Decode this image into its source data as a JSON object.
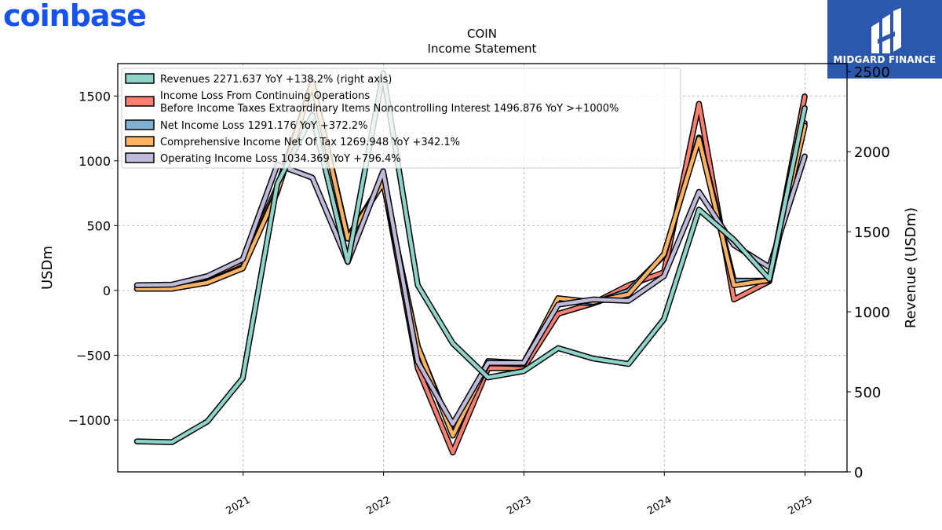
{
  "brand": {
    "name": "coinbase",
    "color": "#1652f0"
  },
  "badge": {
    "text": "MIDGARD FINANCE",
    "color": "#2b57ad"
  },
  "chart_data": {
    "type": "line",
    "title": "COIN",
    "subtitle": "Income Statement",
    "ylabel": "USDm",
    "y2label": "Revenue (USDm)",
    "ylim": [
      -1400,
      1750
    ],
    "y2lim": [
      0,
      2550
    ],
    "yticks": [
      -1000,
      -500,
      0,
      500,
      1000,
      1500
    ],
    "yticklabels": [
      "−1000",
      "−500",
      "0",
      "500",
      "1000",
      "1500"
    ],
    "y2ticks": [
      0,
      500,
      1000,
      1500,
      2000,
      2500
    ],
    "xticks": [
      "2021-01-01",
      "2022-01-01",
      "2023-01-01",
      "2024-01-01",
      "2025-01-01"
    ],
    "xticklabels": [
      "2021",
      "2022",
      "2023",
      "2024",
      "2025"
    ],
    "xlim": [
      "2020-02-10",
      "2025-04-20"
    ],
    "grid": true,
    "legend_position": "top-left",
    "x": [
      "2020-03-31",
      "2020-06-30",
      "2020-09-30",
      "2020-12-31",
      "2021-03-31",
      "2021-06-30",
      "2021-09-30",
      "2021-12-31",
      "2022-03-31",
      "2022-06-30",
      "2022-09-30",
      "2022-12-31",
      "2023-03-31",
      "2023-06-30",
      "2023-09-30",
      "2023-12-31",
      "2024-03-31",
      "2024-06-30",
      "2024-09-30",
      "2024-12-31"
    ],
    "series": [
      {
        "name": "Revenues",
        "legend_label": "Revenues  2271.637 YoY +138.2% (right axis)",
        "axis": "right",
        "color": "#8dd3c7",
        "values": [
          191,
          186,
          315,
          585,
          1800,
          2228,
          1312,
          2490,
          1166,
          803,
          590,
          629,
          773,
          708,
          674,
          954,
          1638,
          1449,
          1205,
          2272
        ]
      },
      {
        "name": "Income Loss From Continuing Operations Before Income Taxes Extraordinary Items Noncontrolling Interest",
        "legend_label": "Income Loss From Continuing Operations Before Income Taxes Extraordinary Items Noncontrolling Interest  1496.876 YoY >+1000%",
        "axis": "left",
        "color": "#fb8072",
        "values": [
          15,
          15,
          70,
          200,
          800,
          1600,
          400,
          850,
          -600,
          -1250,
          -600,
          -600,
          -180,
          -100,
          40,
          140,
          1440,
          -70,
          70,
          1497
        ]
      },
      {
        "name": "Net Income Loss",
        "legend_label": "Net Income Loss  1291.176 YoY +372.2%",
        "axis": "left",
        "color": "#80b1d3",
        "values": [
          13,
          13,
          65,
          180,
          770,
          1610,
          410,
          840,
          -430,
          -1100,
          -545,
          -560,
          -80,
          -100,
          -2,
          270,
          1180,
          75,
          75,
          1291
        ]
      },
      {
        "name": "Comprehensive Income Net Of Tax",
        "legend_label": "Comprehensive Income Net Of Tax  1269.948 YoY +342.1%",
        "axis": "left",
        "color": "#fdb462",
        "values": [
          13,
          13,
          60,
          170,
          760,
          1600,
          400,
          830,
          -430,
          -1120,
          -560,
          -570,
          -60,
          -90,
          -30,
          280,
          1170,
          40,
          80,
          1270
        ]
      },
      {
        "name": "Operating Income Loss",
        "legend_label": "Operating Income Loss  1034.369 YoY +796.4%",
        "axis": "left",
        "color": "#bebada",
        "values": [
          40,
          45,
          110,
          240,
          970,
          870,
          220,
          920,
          -550,
          -1030,
          -560,
          -560,
          -110,
          -70,
          -80,
          110,
          760,
          350,
          180,
          1034
        ]
      }
    ]
  }
}
